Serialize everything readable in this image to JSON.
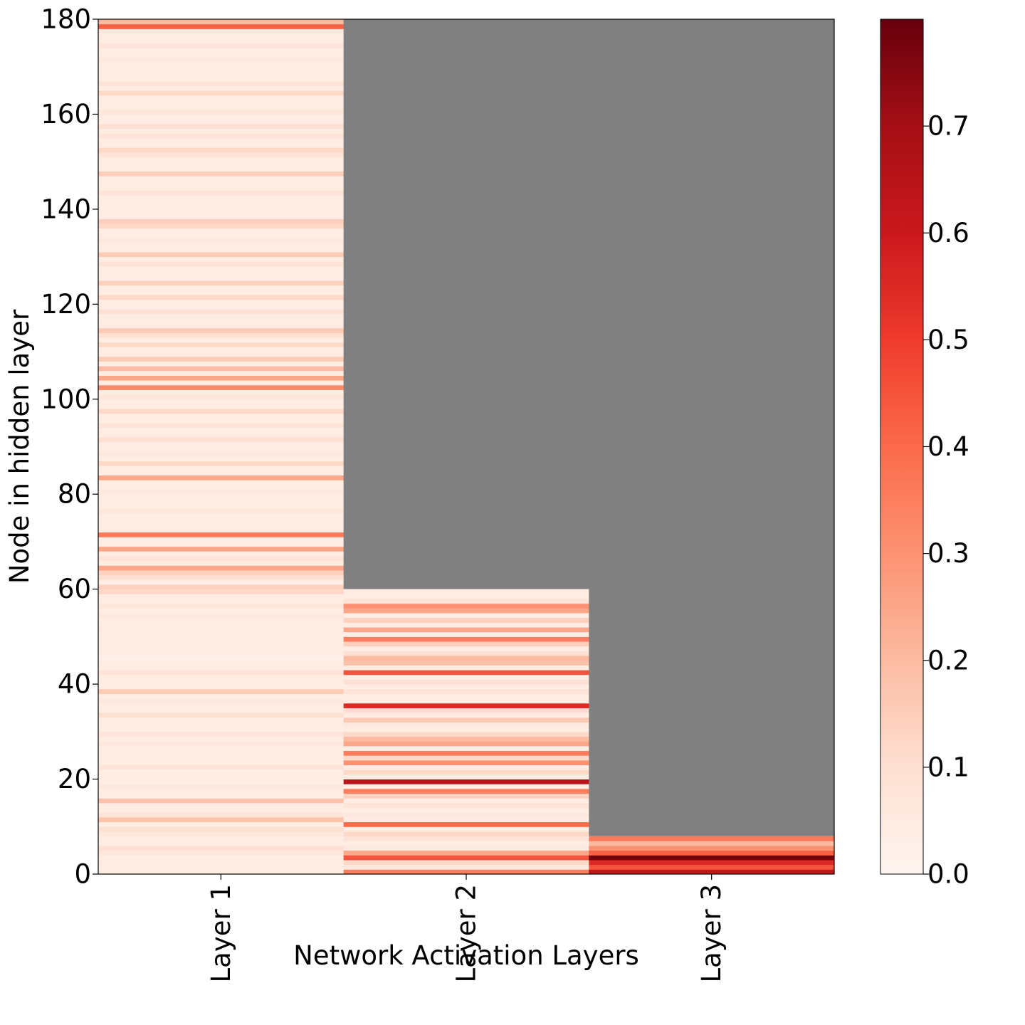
{
  "chart_data": {
    "type": "heatmap",
    "title": "",
    "xlabel": "Network Activation Layers",
    "ylabel": "Node in hidden layer",
    "categories": [
      "Layer 1",
      "Layer 2",
      "Layer 3"
    ],
    "yticks": [
      0,
      20,
      40,
      60,
      80,
      100,
      120,
      140,
      160,
      180
    ],
    "ylim": [
      0,
      180
    ],
    "colormap": "Reds",
    "missing_color": "#808080",
    "colorbar": {
      "vmin": 0.0,
      "vmax": 0.8,
      "ticks": [
        0.0,
        0.1,
        0.2,
        0.3,
        0.4,
        0.5,
        0.6,
        0.7
      ],
      "tick_labels": [
        "0.0",
        "0.1",
        "0.2",
        "0.3",
        "0.4",
        "0.5",
        "0.6",
        "0.7"
      ]
    },
    "series": [
      {
        "nodes": 180,
        "default_value": 0.04,
        "values_by_node": {
          "178": 0.42,
          "179": 0.2,
          "177": 0.06,
          "176": 0.05,
          "174": 0.08,
          "171": 0.06,
          "166": 0.08,
          "164": 0.12,
          "160": 0.07,
          "157": 0.1,
          "155": 0.08,
          "152": 0.12,
          "151": 0.08,
          "147": 0.15,
          "143": 0.08,
          "137": 0.14,
          "136": 0.12,
          "133": 0.06,
          "130": 0.16,
          "128": 0.08,
          "124": 0.14,
          "121": 0.12,
          "118": 0.1,
          "114": 0.16,
          "113": 0.1,
          "111": 0.12,
          "108": 0.16,
          "106": 0.2,
          "104": 0.25,
          "102": 0.32,
          "100": 0.07,
          "97": 0.12,
          "94": 0.08,
          "91": 0.1,
          "88": 0.06,
          "86": 0.12,
          "83": 0.25,
          "80": 0.06,
          "76": 0.07,
          "71": 0.36,
          "68": 0.25,
          "66": 0.08,
          "64": 0.25,
          "63": 0.14,
          "62": 0.1,
          "60": 0.14,
          "59": 0.12,
          "56": 0.07,
          "54": 0.06,
          "51": 0.05,
          "45": 0.02,
          "42": 0.08,
          "38": 0.16,
          "36": 0.06,
          "33": 0.1,
          "29": 0.08,
          "27": 0.06,
          "22": 0.08,
          "18": 0.06,
          "15": 0.18,
          "12": 0.08,
          "11": 0.18,
          "9": 0.1,
          "8": 0.06,
          "5": 0.1,
          "4": 0.07,
          "2": 0.05
        }
      },
      {
        "nodes": 60,
        "default_value": 0.04,
        "values_by_node": {
          "59": 0.05,
          "57": 0.08,
          "56": 0.3,
          "55": 0.25,
          "53": 0.14,
          "51": 0.25,
          "49": 0.35,
          "48": 0.14,
          "46": 0.1,
          "45": 0.2,
          "44": 0.18,
          "42": 0.45,
          "40": 0.1,
          "38": 0.08,
          "35": 0.55,
          "34": 0.1,
          "32": 0.16,
          "31": 0.06,
          "29": 0.12,
          "28": 0.2,
          "27": 0.25,
          "25": 0.35,
          "24": 0.12,
          "23": 0.3,
          "21": 0.12,
          "19": 0.65,
          "17": 0.35,
          "16": 0.14,
          "14": 0.08,
          "12": 0.06,
          "10": 0.4,
          "8": 0.12,
          "7": 0.08,
          "5": 0.06,
          "4": 0.25,
          "3": 0.45,
          "2": 0.12,
          "1": 0.06,
          "0": 0.35
        }
      },
      {
        "nodes": 8,
        "default_value": 0.3,
        "values_by_node": {
          "7": 0.36,
          "6": 0.2,
          "5": 0.3,
          "4": 0.42,
          "3": 0.78,
          "2": 0.55,
          "1": 0.45,
          "0": 0.62
        }
      }
    ]
  }
}
